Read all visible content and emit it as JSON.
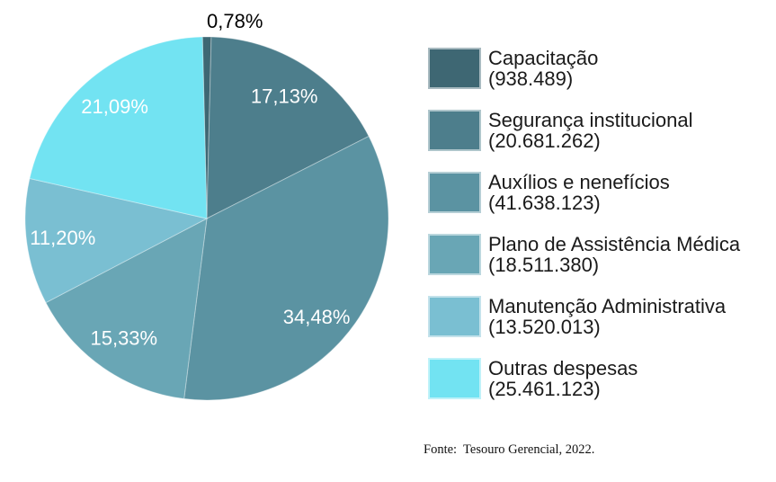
{
  "chart_data": {
    "type": "pie",
    "legend_position": "right",
    "start_angle_deg": -1.4,
    "inside_label_color": "#ffffff",
    "outside_label_color": "#000000",
    "slices": [
      {
        "label": "Capacitação",
        "value": 938489,
        "value_label": "(938.489)",
        "pct": 0.78,
        "pct_label": "0,78%",
        "color": "#3E6773",
        "label_outside": true
      },
      {
        "label": "Segurança institucional",
        "value": 20681262,
        "value_label": "(20.681.262)",
        "pct": 17.13,
        "pct_label": "17,13%",
        "color": "#4D7E8C"
      },
      {
        "label": "Auxílios e nenefícios",
        "value": 41638123,
        "value_label": "(41.638.123)",
        "pct": 34.48,
        "pct_label": "34,48%",
        "color": "#5B93A2",
        "label_dx": -10,
        "label_dy": 16
      },
      {
        "label": "Plano de Assistência Médica",
        "value": 18511380,
        "value_label": "(18.511.380)",
        "pct": 15.33,
        "pct_label": "15,33%",
        "color": "#69A6B5"
      },
      {
        "label": "Manutenção Administrativa",
        "value": 13520013,
        "value_label": "(13.520.013)",
        "pct": 11.2,
        "pct_label": "11,20%",
        "color": "#7ABFD2"
      },
      {
        "label": "Outras despesas",
        "value": 25461123,
        "value_label": "(25.461.123)",
        "pct": 21.09,
        "pct_label": "21,09%",
        "color": "#72E3F2"
      }
    ]
  },
  "footer": {
    "source_text": "Fonte:  Tesouro Gerencial, 2022."
  }
}
